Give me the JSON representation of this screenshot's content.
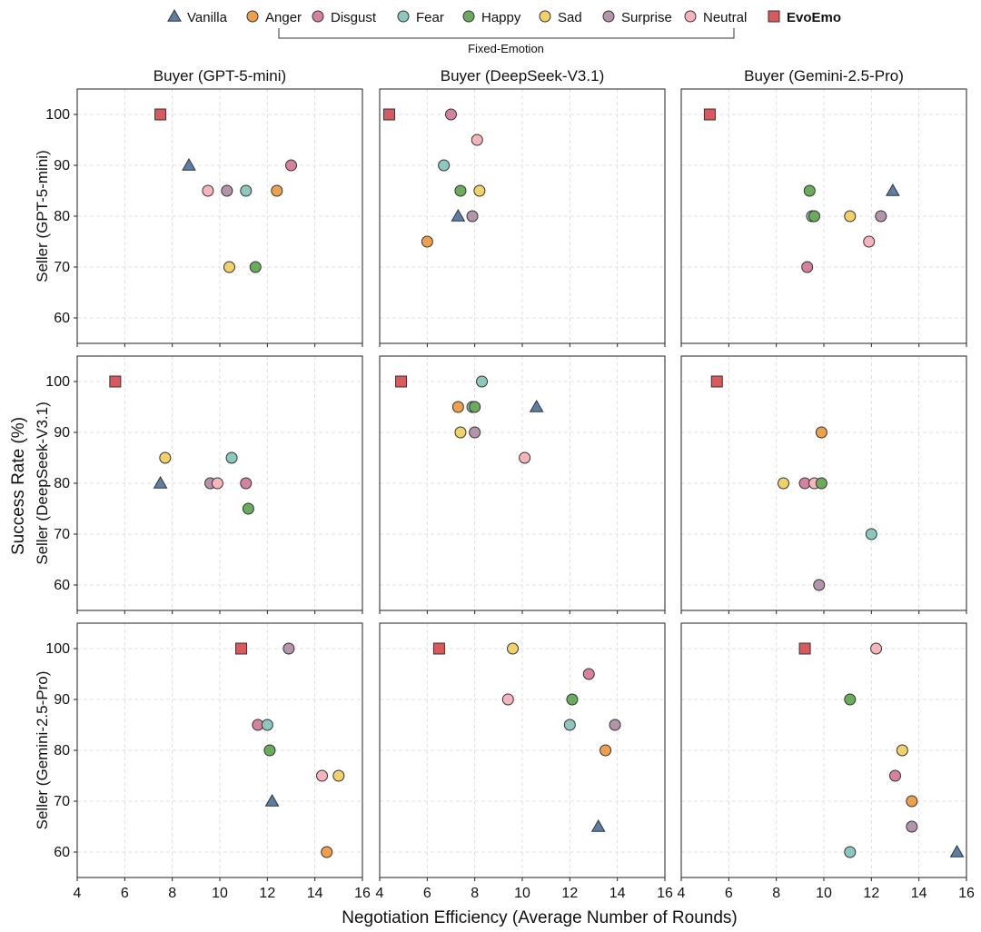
{
  "colors": {
    "Vanilla": "#5b7ea4",
    "Anger": "#f0a04b",
    "Disgust": "#d6829e",
    "Fear": "#8cc8bd",
    "Happy": "#6aab5c",
    "Sad": "#f1d26a",
    "Surprise": "#b394aa",
    "Neutral": "#f7b4bb",
    "EvoEmo": "#d9595c"
  },
  "legend": {
    "items": [
      {
        "name": "Vanilla",
        "marker": "triangle"
      },
      {
        "name": "Anger",
        "marker": "circle"
      },
      {
        "name": "Disgust",
        "marker": "circle"
      },
      {
        "name": "Fear",
        "marker": "circle"
      },
      {
        "name": "Happy",
        "marker": "circle"
      },
      {
        "name": "Sad",
        "marker": "circle"
      },
      {
        "name": "Surprise",
        "marker": "circle"
      },
      {
        "name": "Neutral",
        "marker": "circle"
      },
      {
        "name": "EvoEmo",
        "marker": "square",
        "bold": true
      }
    ],
    "group_label": "Fixed-Emotion"
  },
  "xlabel": "Negotiation Efficiency (Average Number of Rounds)",
  "ylabel": "Success Rate (%)",
  "col_titles": [
    "Buyer (GPT-5-mini)",
    "Buyer (DeepSeek-V3.1)",
    "Buyer (Gemini-2.5-Pro)"
  ],
  "row_labels": [
    "Seller (GPT-5-mini)",
    "Seller (DeepSeek-V3.1)",
    "Seller (Gemini-2.5-Pro)"
  ],
  "chart_data": {
    "type": "scatter",
    "grid": true,
    "xlim": [
      4,
      16
    ],
    "ylim": [
      55,
      105
    ],
    "xticks": [
      4,
      6,
      8,
      10,
      12,
      14,
      16
    ],
    "yticks": [
      60,
      70,
      80,
      90,
      100
    ],
    "panels": [
      {
        "row": 0,
        "col": 0,
        "points": [
          {
            "s": "EvoEmo",
            "x": 7.5,
            "y": 100
          },
          {
            "s": "Vanilla",
            "x": 8.7,
            "y": 90
          },
          {
            "s": "Disgust",
            "x": 13.0,
            "y": 90
          },
          {
            "s": "Neutral",
            "x": 9.5,
            "y": 85
          },
          {
            "s": "Surprise",
            "x": 10.3,
            "y": 85
          },
          {
            "s": "Fear",
            "x": 11.1,
            "y": 85
          },
          {
            "s": "Anger",
            "x": 12.4,
            "y": 85
          },
          {
            "s": "Sad",
            "x": 10.4,
            "y": 70
          },
          {
            "s": "Happy",
            "x": 11.5,
            "y": 70
          }
        ]
      },
      {
        "row": 0,
        "col": 1,
        "points": [
          {
            "s": "EvoEmo",
            "x": 4.4,
            "y": 100
          },
          {
            "s": "Disgust",
            "x": 7.0,
            "y": 100
          },
          {
            "s": "Neutral",
            "x": 8.1,
            "y": 95
          },
          {
            "s": "Fear",
            "x": 6.7,
            "y": 90
          },
          {
            "s": "Happy",
            "x": 7.4,
            "y": 85
          },
          {
            "s": "Sad",
            "x": 8.2,
            "y": 85
          },
          {
            "s": "Vanilla",
            "x": 7.3,
            "y": 80
          },
          {
            "s": "Surprise",
            "x": 7.9,
            "y": 80
          },
          {
            "s": "Anger",
            "x": 6.0,
            "y": 75
          }
        ]
      },
      {
        "row": 0,
        "col": 2,
        "points": [
          {
            "s": "EvoEmo",
            "x": 5.2,
            "y": 100
          },
          {
            "s": "Happy",
            "x": 9.4,
            "y": 85
          },
          {
            "s": "Vanilla",
            "x": 12.9,
            "y": 85
          },
          {
            "s": "Fear",
            "x": 9.5,
            "y": 80
          },
          {
            "s": "Happy",
            "x": 9.6,
            "y": 80
          },
          {
            "s": "Sad",
            "x": 11.1,
            "y": 80
          },
          {
            "s": "Surprise",
            "x": 12.4,
            "y": 80
          },
          {
            "s": "Neutral",
            "x": 11.9,
            "y": 75
          },
          {
            "s": "Disgust",
            "x": 9.3,
            "y": 70
          }
        ]
      },
      {
        "row": 1,
        "col": 0,
        "points": [
          {
            "s": "EvoEmo",
            "x": 5.6,
            "y": 100
          },
          {
            "s": "Sad",
            "x": 7.7,
            "y": 85
          },
          {
            "s": "Fear",
            "x": 10.5,
            "y": 85
          },
          {
            "s": "Vanilla",
            "x": 7.5,
            "y": 80
          },
          {
            "s": "Surprise",
            "x": 9.6,
            "y": 80
          },
          {
            "s": "Neutral",
            "x": 9.9,
            "y": 80
          },
          {
            "s": "Disgust",
            "x": 11.1,
            "y": 80
          },
          {
            "s": "Happy",
            "x": 11.2,
            "y": 75
          }
        ]
      },
      {
        "row": 1,
        "col": 1,
        "points": [
          {
            "s": "EvoEmo",
            "x": 4.9,
            "y": 100
          },
          {
            "s": "Fear",
            "x": 8.3,
            "y": 100
          },
          {
            "s": "Anger",
            "x": 7.3,
            "y": 95
          },
          {
            "s": "Fear",
            "x": 7.9,
            "y": 95
          },
          {
            "s": "Happy",
            "x": 8.0,
            "y": 95
          },
          {
            "s": "Vanilla",
            "x": 10.6,
            "y": 95
          },
          {
            "s": "Sad",
            "x": 7.4,
            "y": 90
          },
          {
            "s": "Surprise",
            "x": 8.0,
            "y": 90
          },
          {
            "s": "Neutral",
            "x": 10.1,
            "y": 85
          }
        ]
      },
      {
        "row": 1,
        "col": 2,
        "points": [
          {
            "s": "EvoEmo",
            "x": 5.5,
            "y": 100
          },
          {
            "s": "Anger",
            "x": 9.9,
            "y": 90
          },
          {
            "s": "Sad",
            "x": 8.3,
            "y": 80
          },
          {
            "s": "Disgust",
            "x": 9.2,
            "y": 80
          },
          {
            "s": "Neutral",
            "x": 9.6,
            "y": 80
          },
          {
            "s": "Happy",
            "x": 9.9,
            "y": 80
          },
          {
            "s": "Fear",
            "x": 12.0,
            "y": 70
          },
          {
            "s": "Surprise",
            "x": 9.8,
            "y": 60
          }
        ]
      },
      {
        "row": 2,
        "col": 0,
        "points": [
          {
            "s": "EvoEmo",
            "x": 10.9,
            "y": 100
          },
          {
            "s": "Surprise",
            "x": 12.9,
            "y": 100
          },
          {
            "s": "Disgust",
            "x": 11.6,
            "y": 85
          },
          {
            "s": "Fear",
            "x": 12.0,
            "y": 85
          },
          {
            "s": "Happy",
            "x": 12.1,
            "y": 80
          },
          {
            "s": "Neutral",
            "x": 14.3,
            "y": 75
          },
          {
            "s": "Sad",
            "x": 15.0,
            "y": 75
          },
          {
            "s": "Vanilla",
            "x": 12.2,
            "y": 70
          },
          {
            "s": "Anger",
            "x": 14.5,
            "y": 60
          }
        ]
      },
      {
        "row": 2,
        "col": 1,
        "points": [
          {
            "s": "EvoEmo",
            "x": 6.5,
            "y": 100
          },
          {
            "s": "Sad",
            "x": 9.6,
            "y": 100
          },
          {
            "s": "Disgust",
            "x": 12.8,
            "y": 95
          },
          {
            "s": "Neutral",
            "x": 9.4,
            "y": 90
          },
          {
            "s": "Happy",
            "x": 12.1,
            "y": 90
          },
          {
            "s": "Fear",
            "x": 12.0,
            "y": 85
          },
          {
            "s": "Surprise",
            "x": 13.9,
            "y": 85
          },
          {
            "s": "Anger",
            "x": 13.5,
            "y": 80
          },
          {
            "s": "Vanilla",
            "x": 13.2,
            "y": 65
          }
        ]
      },
      {
        "row": 2,
        "col": 2,
        "points": [
          {
            "s": "EvoEmo",
            "x": 9.2,
            "y": 100
          },
          {
            "s": "Neutral",
            "x": 12.2,
            "y": 100
          },
          {
            "s": "Happy",
            "x": 11.1,
            "y": 90
          },
          {
            "s": "Sad",
            "x": 13.3,
            "y": 80
          },
          {
            "s": "Disgust",
            "x": 13.0,
            "y": 75
          },
          {
            "s": "Anger",
            "x": 13.7,
            "y": 70
          },
          {
            "s": "Surprise",
            "x": 13.7,
            "y": 65
          },
          {
            "s": "Fear",
            "x": 11.1,
            "y": 60
          },
          {
            "s": "Vanilla",
            "x": 15.6,
            "y": 60
          }
        ]
      }
    ]
  }
}
